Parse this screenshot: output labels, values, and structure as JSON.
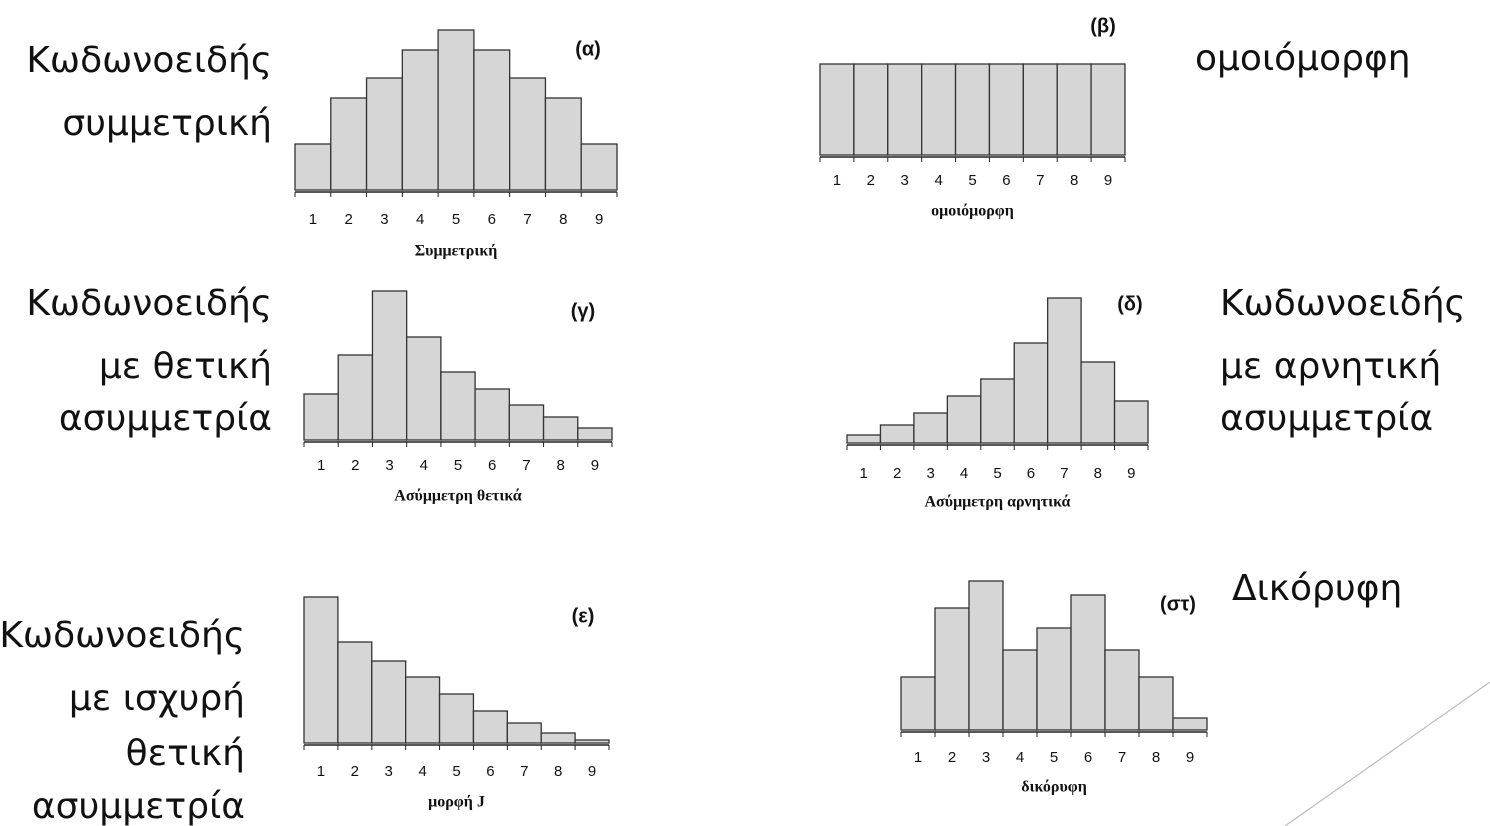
{
  "chart_data": [
    {
      "type": "bar",
      "label": "(α)",
      "x_label": "Συμμετρική",
      "annotations": [
        "Κωδωνοειδής",
        "συμμετρική"
      ],
      "categories": [
        "1",
        "2",
        "3",
        "4",
        "5",
        "6",
        "7",
        "8",
        "9"
      ],
      "values": [
        46,
        92,
        112,
        140,
        160,
        140,
        112,
        92,
        46
      ],
      "color": "#d6d6d6"
    },
    {
      "type": "bar",
      "label": "(β)",
      "x_label": "ομοιόμορφη",
      "annotations": [
        "ομοιόμορφη"
      ],
      "categories": [
        "1",
        "2",
        "3",
        "4",
        "5",
        "6",
        "7",
        "8",
        "9"
      ],
      "values": [
        91,
        91,
        91,
        91,
        91,
        91,
        91,
        91,
        91
      ],
      "color": "#d6d6d6"
    },
    {
      "type": "bar",
      "label": "(γ)",
      "x_label": "Ασύμμετρη θετικά",
      "annotations": [
        "Κωδωνοειδής",
        "με θετική",
        "ασυμμετρία"
      ],
      "categories": [
        "1",
        "2",
        "3",
        "4",
        "5",
        "6",
        "7",
        "8",
        "9"
      ],
      "values": [
        46,
        85,
        149,
        103,
        68,
        51,
        35,
        23,
        12
      ],
      "color": "#d6d6d6"
    },
    {
      "type": "bar",
      "label": "(δ)",
      "x_label": "Ασύμμετρη αρνητικά",
      "annotations": [
        "Κωδωνοειδής",
        "με αρνητική",
        "ασυμμετρία"
      ],
      "categories": [
        "1",
        "2",
        "3",
        "4",
        "5",
        "6",
        "7",
        "8",
        "9"
      ],
      "values": [
        8,
        18,
        30,
        47,
        64,
        100,
        145,
        81,
        42
      ],
      "color": "#d6d6d6"
    },
    {
      "type": "bar",
      "label": "(ε)",
      "x_label": "μορφή J",
      "annotations": [
        "Κωδωνοειδής",
        "με ισχυρή",
        "θετική",
        "ασυμμετρία"
      ],
      "categories": [
        "1",
        "2",
        "3",
        "4",
        "5",
        "6",
        "7",
        "8",
        "9"
      ],
      "values": [
        146,
        101,
        82,
        66,
        49,
        32,
        20,
        10,
        3
      ],
      "color": "#d6d6d6"
    },
    {
      "type": "bar",
      "label": "(στ)",
      "x_label": "δικόρυφη",
      "annotations": [
        "Δικόρυφη"
      ],
      "categories": [
        "1",
        "2",
        "3",
        "4",
        "5",
        "6",
        "7",
        "8",
        "9"
      ],
      "values": [
        53,
        122,
        149,
        80,
        102,
        135,
        80,
        53,
        12
      ],
      "color": "#d6d6d6"
    }
  ]
}
